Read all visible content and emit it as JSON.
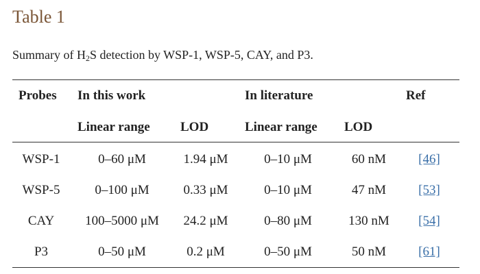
{
  "title": "Table 1",
  "caption": [
    "Summary of H",
    "2",
    "S detection by WSP-1, WSP-5, CAY, and P3."
  ],
  "table": {
    "header": [
      "Probes",
      "In this work",
      "In literature",
      "Ref"
    ],
    "subheader": [
      "Linear range",
      "LOD",
      "Linear range",
      "LOD"
    ],
    "rows": [
      [
        "WSP-1",
        "0–60 μM",
        "1.94 μM",
        "0–10 μM",
        "60 nM",
        "[46]"
      ],
      [
        "WSP-5",
        "0–100 μM",
        "0.33 μM",
        "0–10 μM",
        "47 nM",
        "[53]"
      ],
      [
        "CAY",
        "100–5000 μM",
        "24.2 μM",
        "0–80 μM",
        "130 nM",
        "[54]"
      ],
      [
        "P3",
        "0–50 μM",
        "0.2 μM",
        "0–50 μM",
        "50 nM",
        "[61]"
      ]
    ]
  }
}
